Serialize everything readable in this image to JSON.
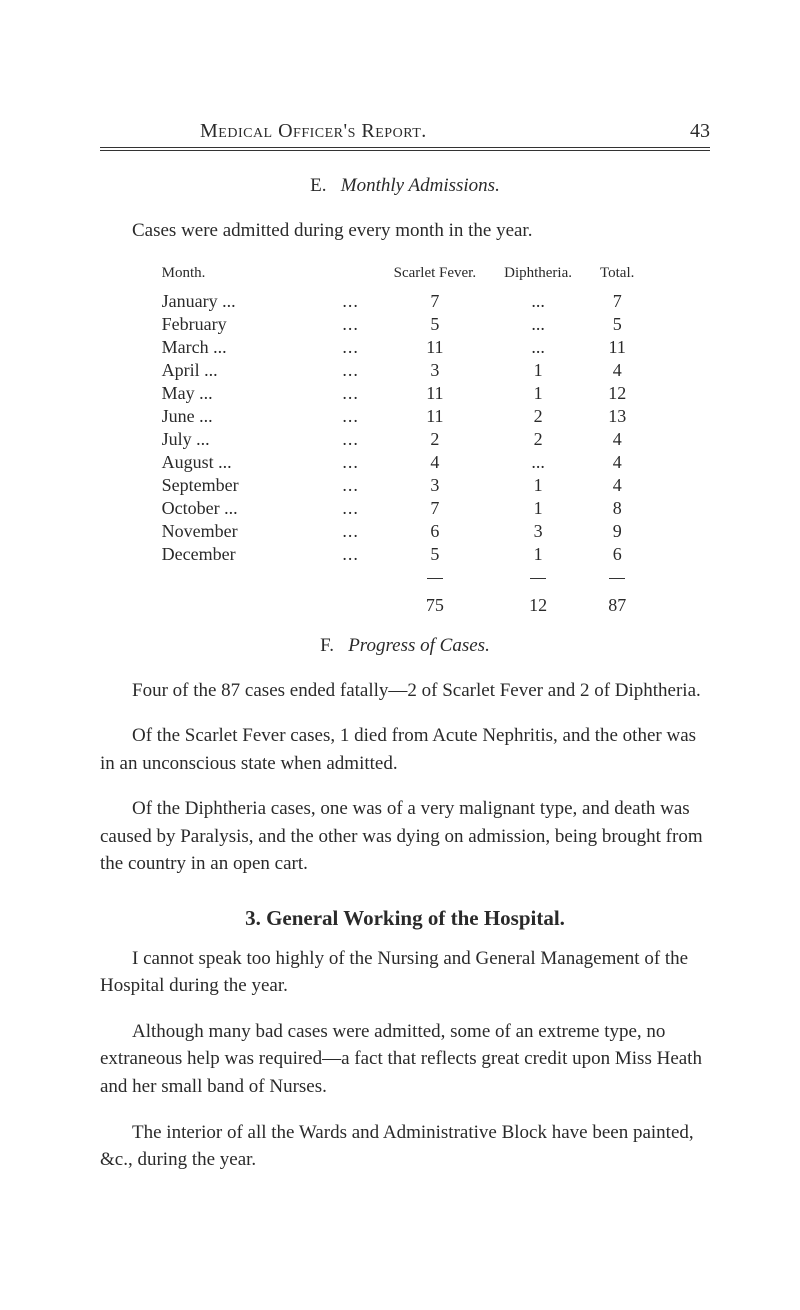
{
  "page": {
    "runningTitle": "Medical Officer's Report.",
    "number": "43"
  },
  "sectionE": {
    "letter": "E.",
    "title": "Monthly Admissions.",
    "intro": "Cases were admitted during every month in the year.",
    "columns": {
      "month": "Month.",
      "scarlet": "Scarlet Fever.",
      "diph": "Diphtheria.",
      "total": "Total."
    },
    "rows": [
      {
        "month": "January ...",
        "sf": "7",
        "d": "...",
        "t": "7"
      },
      {
        "month": "February",
        "sf": "5",
        "d": "...",
        "t": "5"
      },
      {
        "month": "March ...",
        "sf": "11",
        "d": "...",
        "t": "11"
      },
      {
        "month": "April ...",
        "sf": "3",
        "d": "1",
        "t": "4"
      },
      {
        "month": "May ...",
        "sf": "11",
        "d": "1",
        "t": "12"
      },
      {
        "month": "June ...",
        "sf": "11",
        "d": "2",
        "t": "13"
      },
      {
        "month": "July ...",
        "sf": "2",
        "d": "2",
        "t": "4"
      },
      {
        "month": "August ...",
        "sf": "4",
        "d": "...",
        "t": "4"
      },
      {
        "month": "September",
        "sf": "3",
        "d": "1",
        "t": "4"
      },
      {
        "month": "October ...",
        "sf": "7",
        "d": "1",
        "t": "8"
      },
      {
        "month": "November",
        "sf": "6",
        "d": "3",
        "t": "9"
      },
      {
        "month": "December",
        "sf": "5",
        "d": "1",
        "t": "6"
      }
    ],
    "totals": {
      "sf": "75",
      "d": "12",
      "t": "87"
    }
  },
  "sectionF": {
    "letter": "F.",
    "title": "Progress of Cases.",
    "p1": "Four of the 87 cases ended fatally—2 of Scarlet Fever and 2 of Diphtheria.",
    "p2": "Of the Scarlet Fever cases, 1 died from Acute Nephritis, and the other was in an unconscious state when admitted.",
    "p3": "Of the Diphtheria cases, one was of a very malignant type, and death was caused by Paralysis, and the other was dying on admission, being brought from the country in an open cart."
  },
  "section3": {
    "heading": "3.   General Working of the Hospital.",
    "p1": "I cannot speak too highly of the Nursing and General Management of the Hospital during the year.",
    "p2": "Although many bad cases were admitted, some of an extreme type, no extraneous help was required—a fact that reflects great credit upon Miss Heath and her small band of Nurses.",
    "p3": "The interior of all the Wards and Administrative Block have been painted, &c., during the year."
  }
}
